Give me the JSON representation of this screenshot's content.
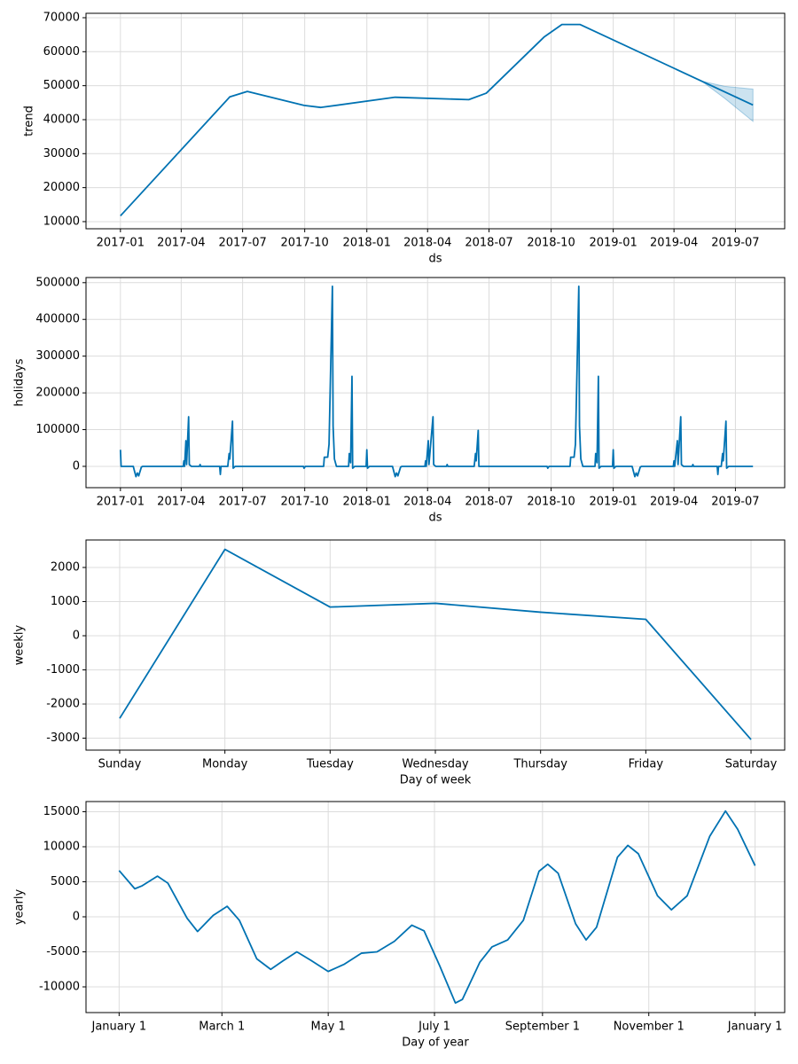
{
  "chart_data": [
    {
      "type": "line",
      "x_label": "ds",
      "y_label": "trend",
      "x": [
        "2017-01-01",
        "2017-06-12",
        "2017-07-08",
        "2017-09-30",
        "2017-10-25",
        "2018-02-12",
        "2018-06-01",
        "2018-06-27",
        "2018-09-21",
        "2018-10-17",
        "2018-11-13",
        "2019-07-27"
      ],
      "series": [
        {
          "color": "#0072B2",
          "values": [
            11700,
            46700,
            48300,
            44200,
            43600,
            46600,
            45900,
            47800,
            64400,
            68000,
            68000,
            44300
          ]
        }
      ],
      "band": {
        "color": "#0072B2",
        "x": [
          "2019-05-15",
          "2019-06-15",
          "2019-07-27"
        ],
        "upper": [
          51200,
          49800,
          49000
        ],
        "lower": [
          50900,
          46300,
          39500
        ]
      },
      "xlim": [
        "2016-11-11",
        "2019-09-12"
      ],
      "xticks": [
        "2017-01",
        "2017-04",
        "2017-07",
        "2017-10",
        "2018-01",
        "2018-04",
        "2018-07",
        "2018-10",
        "2019-01",
        "2019-04",
        "2019-07"
      ],
      "ylim": [
        7900,
        71300
      ],
      "yticks": [
        10000,
        20000,
        30000,
        40000,
        50000,
        60000,
        70000
      ],
      "grid": true
    },
    {
      "type": "line",
      "x_label": "ds",
      "y_label": "holidays",
      "x": [
        "2017-01-01",
        "2017-01-02",
        "2017-01-20",
        "2017-01-24",
        "2017-01-26",
        "2017-01-28",
        "2017-02-01",
        "2017-02-03",
        "2017-04-04",
        "2017-04-05",
        "2017-04-06",
        "2017-04-08",
        "2017-04-09",
        "2017-04-12",
        "2017-04-13",
        "2017-04-16",
        "2017-04-28",
        "2017-04-29",
        "2017-04-30",
        "2017-05-28",
        "2017-05-29",
        "2017-05-30",
        "2017-06-09",
        "2017-06-11",
        "2017-06-12",
        "2017-06-16",
        "2017-06-17",
        "2017-06-20",
        "2017-09-29",
        "2017-09-30",
        "2017-10-02",
        "2017-10-29",
        "2017-10-30",
        "2017-11-04",
        "2017-11-06",
        "2017-11-11",
        "2017-11-12",
        "2017-11-14",
        "2017-11-17",
        "2017-12-05",
        "2017-12-06",
        "2017-12-08",
        "2017-12-10",
        "2017-12-11",
        "2017-12-14",
        "2017-12-31",
        "2018-01-01",
        "2018-01-02",
        "2018-01-05",
        "2018-02-08",
        "2018-02-12",
        "2018-02-14",
        "2018-02-16",
        "2018-02-20",
        "2018-02-22",
        "2018-03-28",
        "2018-03-29",
        "2018-03-30",
        "2018-04-02",
        "2018-04-03",
        "2018-04-09",
        "2018-04-10",
        "2018-04-13",
        "2018-04-29",
        "2018-04-30",
        "2018-05-01",
        "2018-06-09",
        "2018-06-11",
        "2018-06-12",
        "2018-06-15",
        "2018-06-16",
        "2018-09-25",
        "2018-09-26",
        "2018-09-28",
        "2018-10-29",
        "2018-10-30",
        "2018-11-04",
        "2018-11-06",
        "2018-11-11",
        "2018-11-12",
        "2018-11-14",
        "2018-11-17",
        "2018-12-05",
        "2018-12-06",
        "2018-12-08",
        "2018-12-10",
        "2018-12-11",
        "2018-12-14",
        "2018-12-31",
        "2019-01-01",
        "2019-01-02",
        "2019-01-05",
        "2019-01-29",
        "2019-02-02",
        "2019-02-04",
        "2019-02-06",
        "2019-02-10",
        "2019-02-12",
        "2019-03-31",
        "2019-04-01",
        "2019-04-02",
        "2019-04-06",
        "2019-04-07",
        "2019-04-11",
        "2019-04-12",
        "2019-04-15",
        "2019-04-28",
        "2019-04-29",
        "2019-04-30",
        "2019-06-04",
        "2019-06-05",
        "2019-06-06",
        "2019-06-10",
        "2019-06-12",
        "2019-06-13",
        "2019-06-17",
        "2019-06-18",
        "2019-06-21",
        "2019-07-27"
      ],
      "series": [
        {
          "color": "#0072B2",
          "values": [
            45000,
            0,
            0,
            -28000,
            -18000,
            -26000,
            -2000,
            0,
            0,
            15000,
            0,
            70000,
            5000,
            135000,
            5000,
            0,
            0,
            5000,
            0,
            0,
            -22000,
            0,
            0,
            35000,
            20000,
            123000,
            -5000,
            0,
            0,
            -5000,
            0,
            0,
            25000,
            25000,
            60000,
            490000,
            110000,
            20000,
            0,
            0,
            35000,
            10000,
            245000,
            -5000,
            0,
            0,
            45000,
            -5000,
            0,
            0,
            -28000,
            -18000,
            -26000,
            -2000,
            0,
            0,
            15000,
            0,
            70000,
            5000,
            135000,
            5000,
            0,
            0,
            5000,
            0,
            0,
            35000,
            15000,
            98000,
            0,
            0,
            -5000,
            0,
            0,
            25000,
            25000,
            60000,
            490000,
            110000,
            20000,
            0,
            0,
            35000,
            10000,
            245000,
            -5000,
            0,
            0,
            45000,
            -5000,
            0,
            0,
            -28000,
            -18000,
            -26000,
            -2000,
            0,
            0,
            15000,
            0,
            70000,
            5000,
            135000,
            5000,
            0,
            0,
            5000,
            0,
            0,
            -22000,
            0,
            0,
            35000,
            15000,
            123000,
            -5000,
            0,
            0
          ]
        }
      ],
      "xlim": [
        "2016-11-11",
        "2019-09-12"
      ],
      "xticks": [
        "2017-01",
        "2017-04",
        "2017-07",
        "2017-10",
        "2018-01",
        "2018-04",
        "2018-07",
        "2018-10",
        "2019-01",
        "2019-04",
        "2019-07"
      ],
      "ylim": [
        -58000,
        514000
      ],
      "yticks": [
        0,
        100000,
        200000,
        300000,
        400000,
        500000
      ],
      "grid": true
    },
    {
      "type": "line",
      "x_label": "Day of week",
      "y_label": "weekly",
      "categories": [
        "Sunday",
        "Monday",
        "Tuesday",
        "Wednesday",
        "Thursday",
        "Friday",
        "Saturday"
      ],
      "series": [
        {
          "color": "#0072B2",
          "values": [
            -2420,
            2530,
            840,
            950,
            690,
            480,
            -3040
          ]
        }
      ],
      "ylim": [
        -3350,
        2805
      ],
      "yticks": [
        -3000,
        -2000,
        -1000,
        0,
        1000,
        2000
      ],
      "grid": true
    },
    {
      "type": "line",
      "x_label": "Day of year",
      "y_label": "yearly",
      "x": [
        0,
        9,
        13,
        22,
        28,
        39,
        45,
        54,
        62,
        69,
        79,
        87,
        94,
        102,
        110,
        120,
        129,
        139,
        148,
        158,
        168,
        175,
        184,
        193,
        197,
        207,
        214,
        223,
        232,
        241,
        246,
        252,
        262,
        268,
        274,
        286,
        292,
        298,
        309,
        317,
        326,
        339,
        348,
        355,
        365
      ],
      "series": [
        {
          "color": "#0072B2",
          "values": [
            6600,
            4000,
            4400,
            5800,
            4800,
            -200,
            -2100,
            200,
            1500,
            -500,
            -6000,
            -7500,
            -6300,
            -5000,
            -6200,
            -7800,
            -6800,
            -5200,
            -5000,
            -3500,
            -1200,
            -2000,
            -7000,
            -12300,
            -11800,
            -6500,
            -4300,
            -3300,
            -500,
            6500,
            7500,
            6200,
            -1000,
            -3300,
            -1500,
            8500,
            10200,
            9000,
            3000,
            1000,
            3000,
            11500,
            15100,
            12500,
            7300
          ]
        }
      ],
      "xlim": [
        -19,
        382
      ],
      "xticks": [
        {
          "value": 0,
          "label": "January 1"
        },
        {
          "value": 59,
          "label": "March 1"
        },
        {
          "value": 120,
          "label": "May 1"
        },
        {
          "value": 181,
          "label": "July 1"
        },
        {
          "value": 243,
          "label": "September 1"
        },
        {
          "value": 304,
          "label": "November 1"
        },
        {
          "value": 365,
          "label": "January 1"
        }
      ],
      "ylim": [
        -13670,
        16450
      ],
      "yticks": [
        -10000,
        -5000,
        0,
        5000,
        10000,
        15000
      ],
      "grid": true
    }
  ]
}
